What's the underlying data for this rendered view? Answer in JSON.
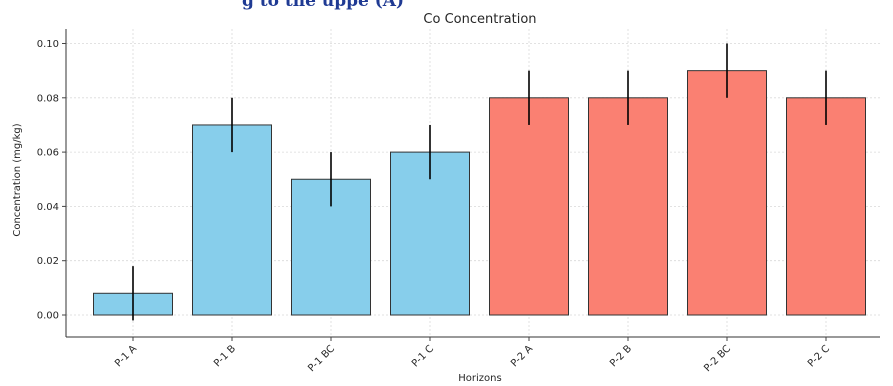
{
  "header_fragment": "g to the uppe (A)",
  "chart_data": {
    "type": "bar",
    "title": "Co Concentration",
    "xlabel": "Horizons",
    "ylabel": "Concentration (mg/kg)",
    "ylim": [
      0,
      0.105
    ],
    "yticks": [
      "0.00",
      "0.02",
      "0.04",
      "0.06",
      "0.08",
      "0.10"
    ],
    "grid": true,
    "categories": [
      "P-1 A",
      "P-1 B",
      "P-1 BC",
      "P-1 C",
      "P-2 A",
      "P-2 B",
      "P-2 BC",
      "P-2 C"
    ],
    "values": [
      0.008,
      0.07,
      0.05,
      0.06,
      0.08,
      0.08,
      0.09,
      0.08
    ],
    "errors": [
      0.01,
      0.01,
      0.01,
      0.01,
      0.01,
      0.01,
      0.01,
      0.01
    ],
    "bar_colors": [
      "#87ceeb",
      "#87ceeb",
      "#87ceeb",
      "#87ceeb",
      "#fa8072",
      "#fa8072",
      "#fa8072",
      "#fa8072"
    ]
  }
}
